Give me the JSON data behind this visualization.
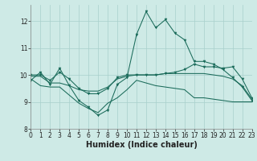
{
  "title": "",
  "xlabel": "Humidex (Indice chaleur)",
  "bg_color": "#ceeae6",
  "grid_color": "#a8d0cc",
  "line_color": "#1a6b5a",
  "x_values": [
    0,
    1,
    2,
    3,
    4,
    5,
    6,
    7,
    8,
    9,
    10,
    11,
    12,
    13,
    14,
    15,
    16,
    17,
    18,
    19,
    20,
    21,
    22,
    23
  ],
  "series1": [
    9.8,
    10.1,
    9.65,
    10.25,
    9.6,
    9.05,
    8.8,
    8.5,
    8.7,
    9.65,
    9.9,
    11.5,
    12.35,
    11.75,
    12.05,
    11.55,
    11.3,
    10.5,
    10.5,
    10.4,
    10.2,
    9.9,
    9.55,
    9.05
  ],
  "series2": [
    9.85,
    9.6,
    9.55,
    9.55,
    9.25,
    8.95,
    8.75,
    8.6,
    8.95,
    9.15,
    9.45,
    9.8,
    9.7,
    9.6,
    9.55,
    9.5,
    9.45,
    9.15,
    9.15,
    9.1,
    9.05,
    9.0,
    9.0,
    9.0
  ],
  "series3": [
    9.95,
    9.95,
    9.7,
    9.7,
    9.6,
    9.45,
    9.4,
    9.4,
    9.55,
    9.85,
    9.95,
    10.0,
    10.0,
    10.0,
    10.05,
    10.05,
    10.05,
    10.05,
    10.05,
    10.0,
    9.95,
    9.85,
    9.6,
    9.1
  ],
  "series4": [
    10.0,
    10.0,
    9.8,
    10.1,
    9.85,
    9.5,
    9.3,
    9.3,
    9.5,
    9.9,
    10.0,
    10.0,
    10.0,
    10.0,
    10.05,
    10.1,
    10.2,
    10.4,
    10.3,
    10.3,
    10.25,
    10.3,
    9.85,
    9.15
  ],
  "xlim": [
    0,
    23
  ],
  "ylim": [
    8.0,
    12.6
  ],
  "yticks": [
    8,
    9,
    10,
    11,
    12
  ],
  "xticks": [
    0,
    1,
    2,
    3,
    4,
    5,
    6,
    7,
    8,
    9,
    10,
    11,
    12,
    13,
    14,
    15,
    16,
    17,
    18,
    19,
    20,
    21,
    22,
    23
  ],
  "xlabel_fontsize": 7,
  "tick_fontsize": 5.5,
  "lw": 0.75,
  "marker_size": 2.2
}
